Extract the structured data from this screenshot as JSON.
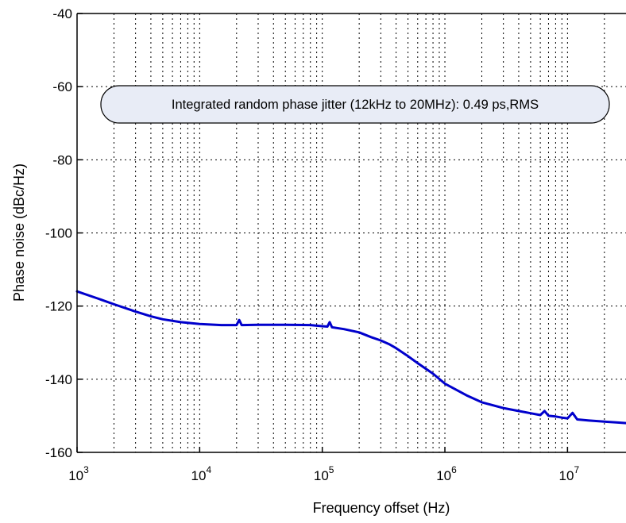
{
  "chart_data": {
    "type": "line",
    "title": "",
    "xlabel": "Frequency offset (Hz)",
    "ylabel": "Phase noise (dBc/Hz)",
    "x_scale": "log",
    "xlim": [
      1000,
      30000000
    ],
    "ylim": [
      -160,
      -40
    ],
    "x_ticks": [
      {
        "base": "10",
        "exp": "3",
        "value": 1000
      },
      {
        "base": "10",
        "exp": "4",
        "value": 10000
      },
      {
        "base": "10",
        "exp": "5",
        "value": 100000
      },
      {
        "base": "10",
        "exp": "6",
        "value": 1000000
      },
      {
        "base": "10",
        "exp": "7",
        "value": 10000000
      }
    ],
    "y_ticks": [
      "-40",
      "-60",
      "-80",
      "-100",
      "-120",
      "-140",
      "-160"
    ],
    "grid": true,
    "annotation": "Integrated random phase jitter (12kHz to 20MHz): 0.49 ps,RMS",
    "series": [
      {
        "color": "#0000cc",
        "x": [
          1000,
          1500,
          2000,
          3000,
          4000,
          5000,
          7000,
          10000,
          15000,
          20000,
          21000,
          22000,
          30000,
          50000,
          80000,
          100000,
          110000,
          115000,
          120000,
          150000,
          200000,
          250000,
          300000,
          350000,
          400000,
          500000,
          600000,
          800000,
          1000000,
          1500000,
          2000000,
          3000000,
          4000000,
          5000000,
          6000000,
          6500000,
          7000000,
          8000000,
          9000000,
          10000000,
          11000000,
          12000000,
          15000000,
          20000000,
          25000000,
          30000000
        ],
        "y": [
          -116,
          -118,
          -119.5,
          -121.5,
          -122.8,
          -123.6,
          -124.4,
          -124.9,
          -125.2,
          -125.2,
          -123.8,
          -125.2,
          -125.1,
          -125.1,
          -125.2,
          -125.5,
          -125.6,
          -124.4,
          -125.8,
          -126.3,
          -127.2,
          -128.5,
          -129.4,
          -130.4,
          -131.5,
          -133.7,
          -135.6,
          -138.5,
          -141.2,
          -144.4,
          -146.3,
          -147.9,
          -148.7,
          -149.3,
          -149.8,
          -148.7,
          -150,
          -150.2,
          -150.5,
          -150.7,
          -149.2,
          -151,
          -151.3,
          -151.6,
          -151.8,
          -152
        ]
      }
    ]
  }
}
